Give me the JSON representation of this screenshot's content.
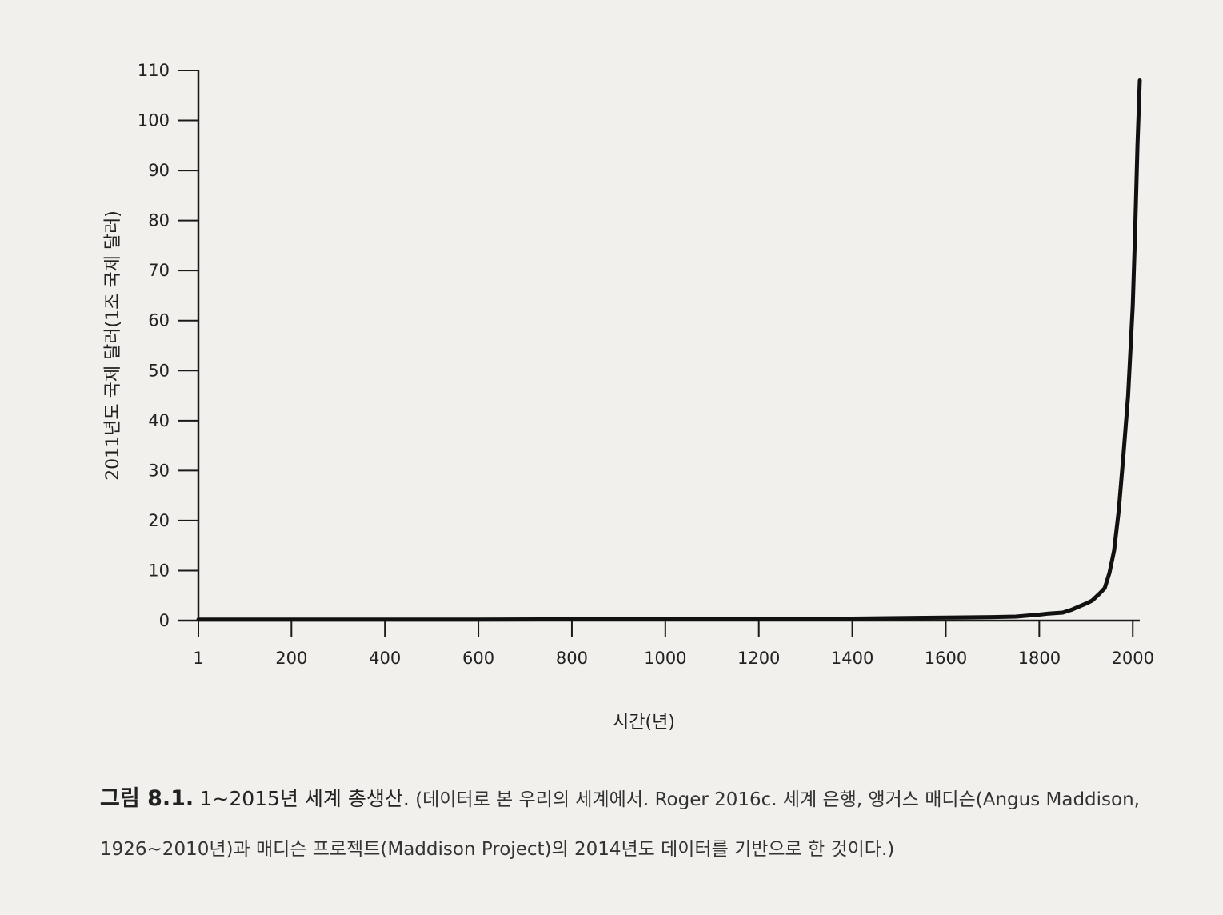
{
  "chart_data": {
    "type": "line",
    "title": "",
    "xlabel": "시간(년)",
    "ylabel": "2011년도 국제 달러(1조 국제 달러)",
    "xlim": [
      1,
      2015
    ],
    "ylim": [
      0,
      110
    ],
    "x_ticks": [
      {
        "value": 1,
        "label": "1"
      },
      {
        "value": 200,
        "label": "200"
      },
      {
        "value": 400,
        "label": "400"
      },
      {
        "value": 600,
        "label": "600"
      },
      {
        "value": 800,
        "label": "800"
      },
      {
        "value": 1000,
        "label": "1000"
      },
      {
        "value": 1200,
        "label": "1200"
      },
      {
        "value": 1400,
        "label": "1400"
      },
      {
        "value": 1600,
        "label": "1600"
      },
      {
        "value": 1800,
        "label": "1800"
      },
      {
        "value": 2000,
        "label": "2000"
      }
    ],
    "y_ticks": [
      0,
      10,
      20,
      30,
      40,
      50,
      60,
      70,
      80,
      90,
      100,
      110
    ],
    "grid": false,
    "series": [
      {
        "name": "",
        "color": "#111111",
        "points": [
          [
            1,
            0.2
          ],
          [
            200,
            0.2
          ],
          [
            400,
            0.2
          ],
          [
            600,
            0.2
          ],
          [
            800,
            0.25
          ],
          [
            1000,
            0.3
          ],
          [
            1200,
            0.35
          ],
          [
            1400,
            0.4
          ],
          [
            1600,
            0.6
          ],
          [
            1700,
            0.7
          ],
          [
            1750,
            0.8
          ],
          [
            1800,
            1.2
          ],
          [
            1820,
            1.4
          ],
          [
            1850,
            1.6
          ],
          [
            1870,
            2.2
          ],
          [
            1900,
            3.4
          ],
          [
            1913,
            4.0
          ],
          [
            1930,
            5.5
          ],
          [
            1940,
            6.5
          ],
          [
            1950,
            9.5
          ],
          [
            1960,
            14
          ],
          [
            1970,
            22
          ],
          [
            1980,
            33
          ],
          [
            1990,
            45
          ],
          [
            2000,
            63
          ],
          [
            2005,
            78
          ],
          [
            2010,
            95
          ],
          [
            2015,
            108
          ]
        ]
      }
    ]
  },
  "caption": {
    "label": "그림 8.1.",
    "title": "1~2015년 세계 총생산.",
    "text": "(데이터로 본 우리의 세계에서. Roger 2016c. 세계 은행, 앵거스 매디슨(Angus Maddison, 1926~2010년)과 매디슨 프로젝트(Maddison Project)의 2014년도 데이터를 기반으로 한 것이다.)"
  }
}
